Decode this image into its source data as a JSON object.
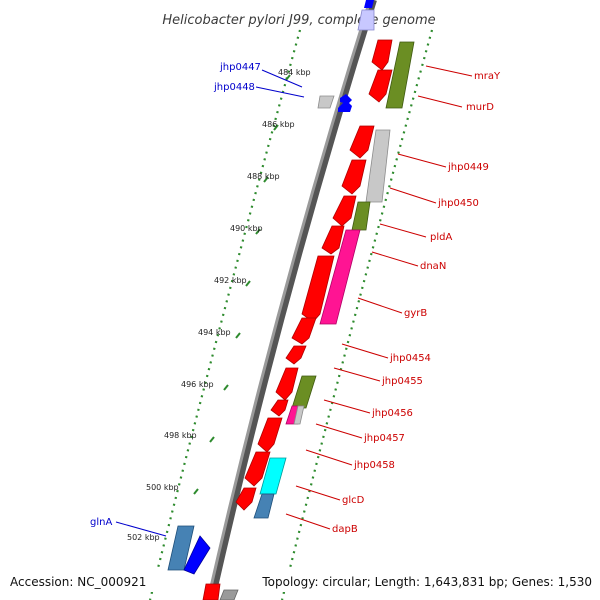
{
  "title": "Helicobacter pylori J99, complete genome",
  "footer": {
    "accession": "Accession: NC_000921",
    "topology": "Topology: circular; Length: 1,643,831 bp; Genes: 1,530"
  },
  "ticks": [
    "484 kbp",
    "486 kbp",
    "488 kbp",
    "490 kbp",
    "492 kbp",
    "494 kbp",
    "496 kbp",
    "498 kbp",
    "500 kbp",
    "502 kbp"
  ],
  "labels_right": [
    "mraY",
    "murD",
    "jhp0449",
    "jhp0450",
    "pldA",
    "dnaN",
    "gyrB",
    "jhp0454",
    "jhp0455",
    "jhp0456",
    "jhp0457",
    "jhp0458",
    "glcD",
    "dapB"
  ],
  "labels_left": [
    "jhp0447",
    "jhp0448",
    "glnA"
  ],
  "colors": {
    "gene_red": "#ff0000",
    "olive": "#6b8e23",
    "grey": "#bdbdbd",
    "magenta": "#ff1493",
    "cyan": "#00ffff",
    "steelblue": "#4682b4",
    "blue": "#0000ff",
    "backbone": "#808080",
    "tick_green": "#008000",
    "label_red": "#cc0000",
    "label_blue": "#0000cc"
  }
}
